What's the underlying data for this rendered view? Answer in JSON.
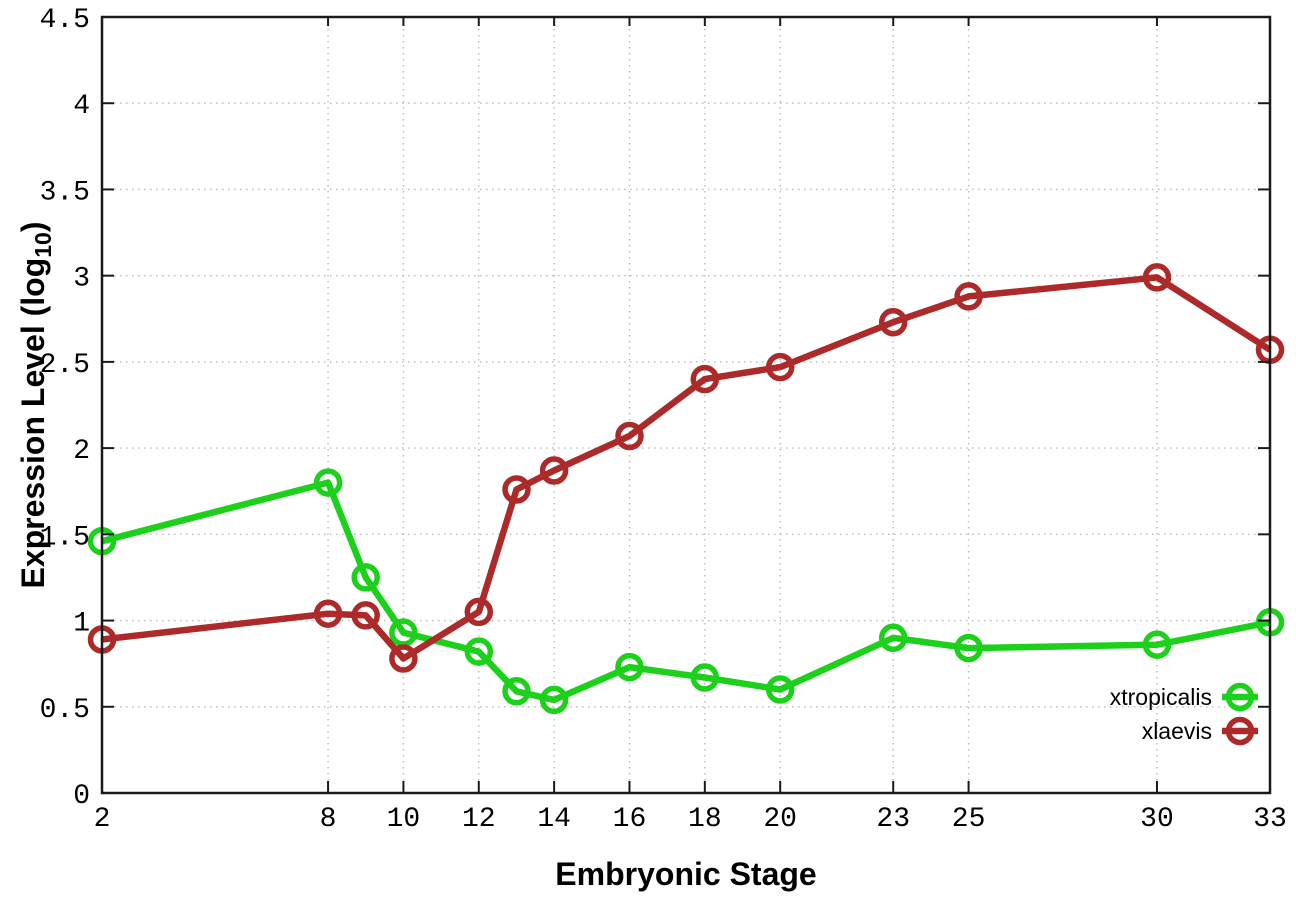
{
  "chart_data": {
    "type": "line",
    "title": "",
    "xlabel": "Embryonic Stage",
    "ylabel": "Expression Level (log10)",
    "ylabel_parts": {
      "main": "Expression Level (log",
      "sub": "10",
      "close": ")"
    },
    "x": [
      2,
      8,
      9,
      10,
      12,
      13,
      14,
      16,
      18,
      20,
      23,
      25,
      30,
      33
    ],
    "series": [
      {
        "name": "xtropicalis",
        "color": "#1cd01c",
        "marker": "open-circle",
        "values": [
          1.46,
          1.8,
          1.25,
          0.93,
          0.82,
          0.59,
          0.54,
          0.73,
          0.67,
          0.6,
          0.9,
          0.84,
          0.86,
          0.99
        ]
      },
      {
        "name": "xlaevis",
        "color": "#ac2a2a",
        "marker": "open-circle",
        "values": [
          0.89,
          1.04,
          1.03,
          0.78,
          1.05,
          1.76,
          1.87,
          2.07,
          2.4,
          2.47,
          2.73,
          2.88,
          2.99,
          2.57
        ]
      }
    ],
    "xlim": [
      2,
      33
    ],
    "ylim": [
      0,
      4.5
    ],
    "xticks": {
      "values": [
        2,
        8,
        10,
        12,
        14,
        16,
        18,
        20,
        23,
        25,
        30,
        33
      ],
      "labels": [
        "2",
        "8",
        "10",
        "12",
        "14",
        "16",
        "18",
        "20",
        "23",
        "25",
        "30",
        "33"
      ]
    },
    "yticks": {
      "values": [
        0,
        0.5,
        1,
        1.5,
        2,
        2.5,
        3,
        3.5,
        4,
        4.5
      ],
      "labels": [
        "0",
        "0.5",
        "1",
        "1.5",
        "2",
        "2.5",
        "3",
        "3.5",
        "4",
        "4.5"
      ]
    },
    "grid": true,
    "legend_position": "inside-bottom-right",
    "legend": [
      "xtropicalis",
      "xlaevis"
    ]
  },
  "style_colors": {
    "grid": "#bbbbbb",
    "axis": "#1a1a1a",
    "text": "#000000",
    "background": "#ffffff"
  }
}
